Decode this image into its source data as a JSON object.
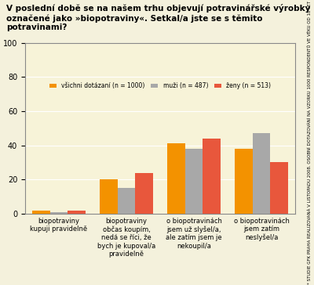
{
  "chart_data": {
    "type": "bar",
    "title": "V poslední době se na našem trhu objevují potravinářské výrobky označené jako »biopotraviny«. Setkal/a jste se s těmito potravinami?",
    "annotations": [
      "* STUDIE GFK PRAHA REALIZOVANÁ V LISTOPADU 2008. OSOBNÍ DOTAZOVÁNÍ NA VZORKU 1000 RESPONDENTŮ VE VĚKU OD 18 LET"
    ],
    "categories": [
      "biopotraviny kupuji pravidelně",
      "biopotraviny občas koupím, nedá se říci, že bych je kupoval/a pravidelně",
      "o biopotravinách jsem už slyšel/a, ale zatím jsem je nekoupil/a",
      "o biopotravinách jsem zatím neslyšel/a"
    ],
    "series": [
      {
        "name": "všichni dotázaní (n = 1000)",
        "color": "#f39200",
        "values": [
          2,
          20,
          41,
          38
        ]
      },
      {
        "name": "muži (n = 487)",
        "color": "#a8a8a8",
        "values": [
          1,
          15,
          38,
          47
        ]
      },
      {
        "name": "ženy (n = 513)",
        "color": "#e8573c",
        "values": [
          2,
          24,
          44,
          30
        ]
      }
    ],
    "ylim": [
      0,
      100
    ],
    "yticks": [
      0,
      20,
      40,
      60,
      80,
      100
    ],
    "grid": true,
    "legend": "upper center"
  }
}
